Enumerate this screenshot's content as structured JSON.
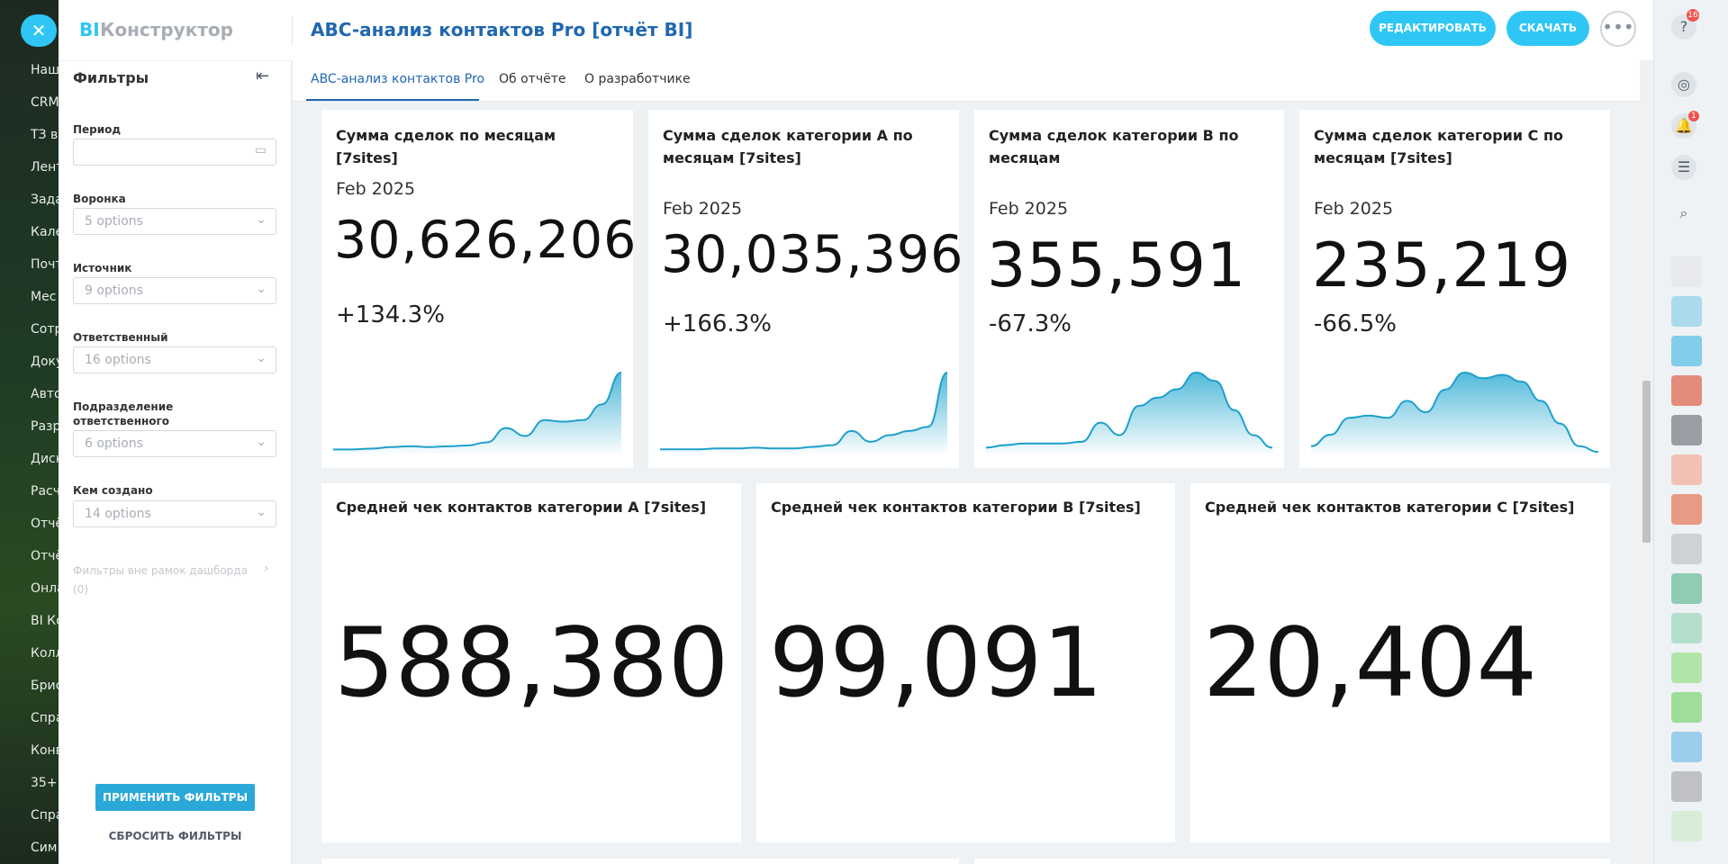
{
  "nav": {
    "items": [
      "Наш",
      "CRM",
      "ТЗ в",
      "Лент",
      "Зада",
      "Кале",
      "Почт",
      "Мес",
      "Сотр",
      "Доку",
      "Авто",
      "Разр",
      "Диск",
      "Расч",
      "Отчё",
      "Отчё",
      "Онла",
      "BI Ко",
      "Колл",
      "Брис",
      "Спра",
      "Конв",
      "35+",
      "Спра",
      "Сим"
    ]
  },
  "header": {
    "logo_bi": "BI",
    "logo": "Конструктор",
    "title": "ABC-анализ контактов Pro [отчёт BI]",
    "edit": "РЕДАКТИРОВАТЬ",
    "download": "СКАЧАТЬ"
  },
  "tabs": [
    "ABC-анализ контактов Pro",
    "Об отчёте",
    "О разработчике"
  ],
  "sidebar": {
    "title": "Фильтры",
    "filters": [
      {
        "label": "Период"
      },
      {
        "label": "Воронка",
        "value": "5 options"
      },
      {
        "label": "Источник",
        "value": "9 options"
      },
      {
        "label": "Ответственный",
        "value": "16 options"
      },
      {
        "label": "Подразделение ответственного",
        "value": "6 options"
      },
      {
        "label": "Кем создано",
        "value": "14 options"
      }
    ],
    "outside": "Фильтры вне рамок дашборда",
    "outside_count": "(0)",
    "apply": "ПРИМЕНИТЬ ФИЛЬТРЫ",
    "reset": "СБРОСИТЬ ФИЛЬТРЫ"
  },
  "kpi_cards": [
    {
      "title": "Сумма сделок по месяцам [7sites]",
      "period": "Feb 2025",
      "value": "30,626,206",
      "change": "+134.3%",
      "trend": [
        3,
        3,
        4,
        6,
        7,
        6,
        7,
        8,
        12,
        30,
        20,
        40,
        38,
        40,
        60,
        100
      ]
    },
    {
      "title": "Сумма сделок категории A по месяцам [7sites]",
      "period": "Feb 2025",
      "value": "30,035,396",
      "change": "+166.3%",
      "trend": [
        3,
        3,
        3,
        4,
        4,
        5,
        4,
        4,
        6,
        8,
        25,
        12,
        20,
        25,
        30,
        95
      ]
    },
    {
      "title": "Сумма сделок категории B по месяцам",
      "period": "Feb 2025",
      "value": "355,591",
      "change": "-67.3%",
      "trend": [
        5,
        8,
        10,
        10,
        10,
        12,
        35,
        20,
        55,
        65,
        75,
        95,
        85,
        50,
        20,
        5
      ]
    },
    {
      "title": "Сумма сделок категории C по месяцам [7sites]",
      "period": "Feb 2025",
      "value": "235,219",
      "change": "-66.5%",
      "trend": [
        5,
        15,
        30,
        32,
        30,
        45,
        35,
        55,
        70,
        65,
        68,
        62,
        45,
        25,
        5,
        0
      ]
    }
  ],
  "avg_cards": [
    {
      "title": "Средней чек контактов категории A [7sites]",
      "value": "588,380"
    },
    {
      "title": "Средней чек контактов категории B [7sites]",
      "value": "99,091"
    },
    {
      "title": "Средней чек контактов категории C [7sites]",
      "value": "20,404"
    }
  ],
  "rightbar": {
    "help_badge": 16,
    "notif_badge": 1
  }
}
